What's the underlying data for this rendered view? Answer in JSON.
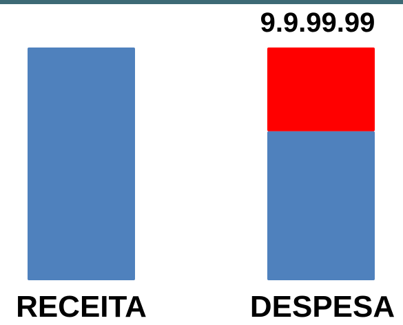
{
  "colors": {
    "base": "#4f81bd",
    "highlight": "#ff0000",
    "topline": "#3d6a75"
  },
  "chart_data": {
    "type": "bar",
    "stacked": true,
    "categories": [
      "RECEITA",
      "DESPESA"
    ],
    "series": [
      {
        "values": [
          100,
          64
        ],
        "color": "#4f81bd"
      },
      {
        "values": [
          0,
          36
        ],
        "color": "#ff0000"
      }
    ],
    "ylim": [
      0,
      100
    ],
    "grid": false,
    "legend": "none",
    "annotations": [
      {
        "text": "9.9.99.99",
        "category": "DESPESA"
      }
    ]
  }
}
